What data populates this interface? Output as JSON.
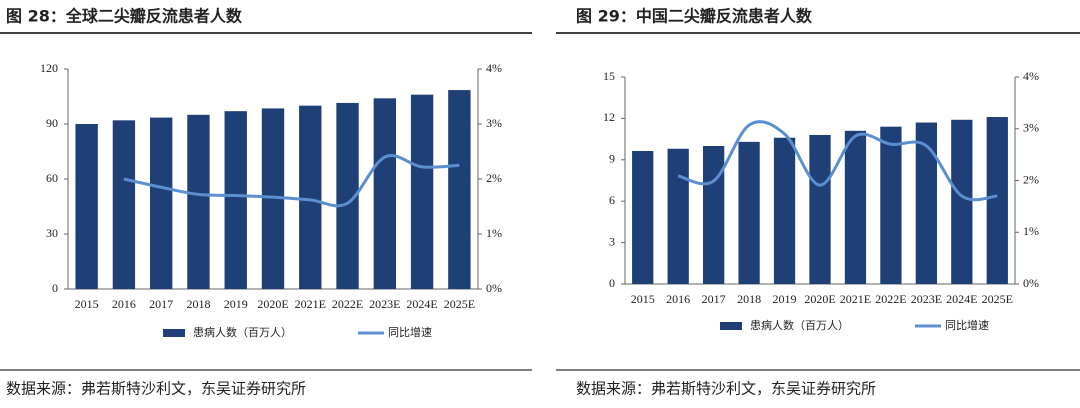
{
  "chart_data": [
    {
      "type": "bar",
      "title": "图 28：全球二尖瓣反流患者人数",
      "source": "数据来源：弗若斯特沙利文，东吴证券研究所",
      "categories": [
        "2015",
        "2016",
        "2017",
        "2018",
        "2019",
        "2020E",
        "2021E",
        "2022E",
        "2023E",
        "2024E",
        "2025E"
      ],
      "series": [
        {
          "name": "患病人数（百万人）",
          "type": "bar",
          "color": "#1f3f77",
          "values": [
            90,
            92,
            93.5,
            95,
            97,
            98.5,
            100,
            101.5,
            104,
            106,
            108.5
          ]
        },
        {
          "name": "同比增速",
          "type": "line",
          "axis": "y2",
          "color": "#5b8fd0",
          "values": [
            null,
            2.0,
            1.85,
            1.72,
            1.7,
            1.67,
            1.62,
            1.56,
            2.4,
            2.22,
            2.25
          ]
        }
      ],
      "ylim": [
        0,
        120
      ],
      "yticks": [
        0,
        30,
        60,
        90,
        120
      ],
      "y2lim": [
        0,
        4
      ],
      "y2ticks": [
        {
          "value": 0,
          "label": "0%"
        },
        {
          "value": 1,
          "label": "1%"
        },
        {
          "value": 2,
          "label": "2%"
        },
        {
          "value": 3,
          "label": "3%"
        },
        {
          "value": 4,
          "label": "4%"
        }
      ],
      "legend": "bottom"
    },
    {
      "type": "bar",
      "title": "图 29：中国二尖瓣反流患者人数",
      "source": "数据来源：弗若斯特沙利文，东吴证券研究所",
      "categories": [
        "2015",
        "2016",
        "2017",
        "2018",
        "2019",
        "2020E",
        "2021E",
        "2022E",
        "2023E",
        "2024E",
        "2025E"
      ],
      "series": [
        {
          "name": "患病人数（百万人）",
          "type": "bar",
          "color": "#1f3f77",
          "values": [
            9.64,
            9.8,
            10.0,
            10.3,
            10.6,
            10.8,
            11.1,
            11.4,
            11.7,
            11.9,
            12.1
          ]
        },
        {
          "name": "同比增速",
          "type": "line",
          "axis": "y2",
          "color": "#5b8fd0",
          "values": [
            null,
            2.09,
            1.99,
            3.07,
            2.9,
            1.91,
            2.86,
            2.7,
            2.67,
            1.7,
            1.7
          ]
        }
      ],
      "ylim": [
        0,
        15
      ],
      "yticks": [
        0,
        3,
        6,
        9,
        12,
        15
      ],
      "y2lim": [
        0,
        4
      ],
      "y2ticks": [
        {
          "value": 0,
          "label": "0%"
        },
        {
          "value": 1,
          "label": "1%"
        },
        {
          "value": 2,
          "label": "2%"
        },
        {
          "value": 3,
          "label": "3%"
        },
        {
          "value": 4,
          "label": "4%"
        }
      ],
      "legend": "bottom"
    }
  ]
}
